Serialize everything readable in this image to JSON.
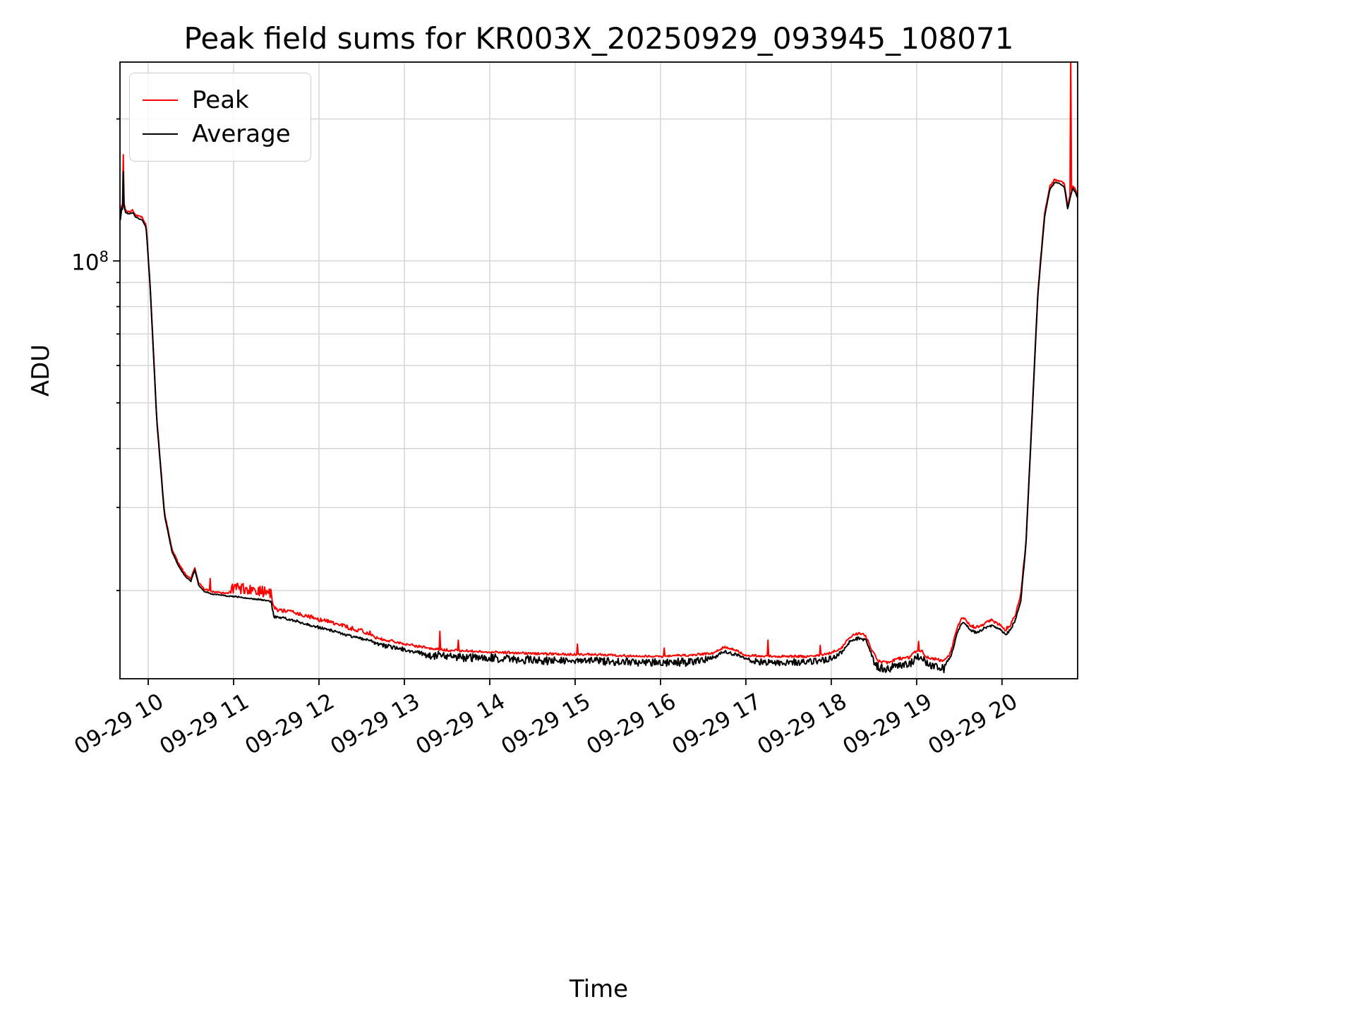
{
  "title": "Peak field sums for KR003X_20250929_093945_108071",
  "xlabel": "Time",
  "ylabel": "ADU",
  "legend": {
    "items": [
      {
        "label": "Peak",
        "color": "#ff0000"
      },
      {
        "label": "Average",
        "color": "#000000"
      }
    ]
  },
  "axes": {
    "x_tick_hours": [
      10,
      11,
      12,
      13,
      14,
      15,
      16,
      17,
      18,
      19,
      20
    ],
    "x_tick_labels": [
      "09-29 10",
      "09-29 11",
      "09-29 12",
      "09-29 13",
      "09-29 14",
      "09-29 15",
      "09-29 16",
      "09-29 17",
      "09-29 18",
      "09-29 19",
      "09-29 20"
    ],
    "xlim": [
      9.669,
      20.886
    ],
    "ylim": [
      13000000.0,
      264000000.0
    ],
    "y_scale": "log",
    "y_grid_values": [
      20000000.0,
      30000000.0,
      40000000.0,
      50000000.0,
      60000000.0,
      70000000.0,
      80000000.0,
      90000000.0,
      100000000.0,
      200000000.0
    ],
    "y_major_value": 100000000.0,
    "y_major_label": {
      "base": "10",
      "exp": "8"
    }
  },
  "style": {
    "grid_color": "#d4d4d4",
    "spine_color": "#000000",
    "background": "#ffffff",
    "peak_color": "#ff0000",
    "average_color": "#000000"
  },
  "chart_data": {
    "type": "line",
    "title": "Peak field sums for KR003X_20250929_093945_108071",
    "xlabel": "Time",
    "ylabel": "ADU",
    "y_scale": "log",
    "x_unit": "hour of day on 2025-09-29",
    "xlim": [
      9.669,
      20.886
    ],
    "ylim": [
      13000000.0,
      264000000.0
    ],
    "legend_position": "upper left",
    "grid": true,
    "sample_step_hours": 0.009,
    "noise_seed": 1337,
    "series": [
      {
        "name": "Peak",
        "color": "#ff0000",
        "definition": "average_base * (1 + red_offset + red_noise*rand), plus isolated spikes",
        "spikes": [
          [
            9.708,
            168000000.0
          ],
          [
            10.722,
            21200000.0
          ],
          [
            13.42,
            16400000.0
          ],
          [
            13.63,
            15700000.0
          ],
          [
            15.03,
            15400000.0
          ],
          [
            16.04,
            15100000.0
          ],
          [
            17.26,
            15700000.0
          ],
          [
            17.87,
            15300000.0
          ],
          [
            19.02,
            15600000.0
          ],
          [
            20.805,
            278000000.0
          ]
        ]
      },
      {
        "name": "Average",
        "color": "#000000",
        "anchors": [
          [
            9.672,
            122000000.0
          ],
          [
            9.69,
            130000000.0
          ],
          [
            9.7,
            129000000.0
          ],
          [
            9.708,
            155000000.0
          ],
          [
            9.716,
            131000000.0
          ],
          [
            9.735,
            127000000.0
          ],
          [
            9.775,
            126000000.0
          ],
          [
            9.82,
            127000000.0
          ],
          [
            9.845,
            124500000.0
          ],
          [
            9.88,
            123500000.0
          ],
          [
            9.93,
            122500000.0
          ],
          [
            9.975,
            118000000.0
          ],
          [
            10.02,
            90000000.0
          ],
          [
            10.1,
            46000000.0
          ],
          [
            10.19,
            29000000.0
          ],
          [
            10.28,
            24200000.0
          ],
          [
            10.36,
            22500000.0
          ],
          [
            10.44,
            21400000.0
          ],
          [
            10.5,
            21000000.0
          ],
          [
            10.545,
            22200000.0
          ],
          [
            10.59,
            20600000.0
          ],
          [
            10.65,
            20000000.0
          ],
          [
            10.75,
            19700000.0
          ],
          [
            10.9,
            19550000.0
          ],
          [
            11.05,
            19450000.0
          ],
          [
            11.2,
            19300000.0
          ],
          [
            11.35,
            19150000.0
          ],
          [
            11.44,
            19000000.0
          ],
          [
            11.475,
            17700000.0
          ],
          [
            11.6,
            17550000.0
          ],
          [
            11.75,
            17300000.0
          ],
          [
            11.95,
            16900000.0
          ],
          [
            12.15,
            16550000.0
          ],
          [
            12.35,
            16150000.0
          ],
          [
            12.55,
            15800000.0
          ],
          [
            12.75,
            15450000.0
          ],
          [
            12.95,
            15200000.0
          ],
          [
            13.2,
            14900000.0
          ],
          [
            13.5,
            14750000.0
          ],
          [
            13.9,
            14650000.0
          ],
          [
            14.3,
            14550000.0
          ],
          [
            14.8,
            14450000.0
          ],
          [
            15.2,
            14450000.0
          ],
          [
            15.6,
            14350000.0
          ],
          [
            16.0,
            14300000.0
          ],
          [
            16.4,
            14400000.0
          ],
          [
            16.62,
            14550000.0
          ],
          [
            16.75,
            15000000.0
          ],
          [
            16.88,
            14750000.0
          ],
          [
            17.0,
            14400000.0
          ],
          [
            17.3,
            14300000.0
          ],
          [
            17.7,
            14300000.0
          ],
          [
            17.95,
            14450000.0
          ],
          [
            18.12,
            14900000.0
          ],
          [
            18.22,
            15750000.0
          ],
          [
            18.32,
            16000000.0
          ],
          [
            18.4,
            15850000.0
          ],
          [
            18.47,
            14800000.0
          ],
          [
            18.55,
            14000000.0
          ],
          [
            18.65,
            13850000.0
          ],
          [
            18.78,
            14150000.0
          ],
          [
            18.92,
            14200000.0
          ],
          [
            19.0,
            14750000.0
          ],
          [
            19.07,
            14600000.0
          ],
          [
            19.13,
            14200000.0
          ],
          [
            19.22,
            14100000.0
          ],
          [
            19.32,
            13950000.0
          ],
          [
            19.4,
            14500000.0
          ],
          [
            19.47,
            16300000.0
          ],
          [
            19.53,
            17200000.0
          ],
          [
            19.58,
            17000000.0
          ],
          [
            19.63,
            16550000.0
          ],
          [
            19.7,
            16400000.0
          ],
          [
            19.78,
            16650000.0
          ],
          [
            19.84,
            17000000.0
          ],
          [
            19.9,
            16900000.0
          ],
          [
            19.97,
            16650000.0
          ],
          [
            20.04,
            16200000.0
          ],
          [
            20.1,
            16600000.0
          ],
          [
            20.16,
            17500000.0
          ],
          [
            20.22,
            19200000.0
          ],
          [
            20.28,
            25000000.0
          ],
          [
            20.34,
            42000000.0
          ],
          [
            20.42,
            85000000.0
          ],
          [
            20.5,
            125000000.0
          ],
          [
            20.56,
            142000000.0
          ],
          [
            20.62,
            147000000.0
          ],
          [
            20.68,
            146000000.0
          ],
          [
            20.73,
            144000000.0
          ],
          [
            20.77,
            129000000.0
          ],
          [
            20.805,
            138000000.0
          ],
          [
            20.83,
            143000000.0
          ],
          [
            20.86,
            140000000.0
          ],
          [
            20.886,
            136000000.0
          ]
        ]
      }
    ],
    "noise_segments": [
      {
        "t0": 9.672,
        "t1": 10.95,
        "red_offset": 0.005,
        "red_noise": 0.008,
        "black_noise": 0.005
      },
      {
        "t0": 10.95,
        "t1": 11.45,
        "red_offset": 0.012,
        "red_noise": 0.055,
        "black_noise": 0.006
      },
      {
        "t0": 11.45,
        "t1": 12.65,
        "red_offset": 0.022,
        "red_noise": 0.022,
        "black_noise": 0.012
      },
      {
        "t0": 12.65,
        "t1": 13.25,
        "red_offset": 0.012,
        "red_noise": 0.014,
        "black_noise": 0.02
      },
      {
        "t0": 13.25,
        "t1": 16.55,
        "red_offset": 0.008,
        "red_noise": 0.012,
        "black_noise": 0.035
      },
      {
        "t0": 16.55,
        "t1": 17.05,
        "red_offset": 0.008,
        "red_noise": 0.01,
        "black_noise": 0.016
      },
      {
        "t0": 17.05,
        "t1": 18.08,
        "red_offset": 0.008,
        "red_noise": 0.012,
        "black_noise": 0.03
      },
      {
        "t0": 18.08,
        "t1": 18.5,
        "red_offset": 0.008,
        "red_noise": 0.012,
        "black_noise": 0.016
      },
      {
        "t0": 18.5,
        "t1": 19.35,
        "red_offset": 0.007,
        "red_noise": 0.015,
        "black_noise": 0.035
      },
      {
        "t0": 19.35,
        "t1": 20.26,
        "red_offset": 0.01,
        "red_noise": 0.018,
        "black_noise": 0.012
      },
      {
        "t0": 20.26,
        "t1": 20.886,
        "red_offset": 0.007,
        "red_noise": 0.01,
        "black_noise": 0.004
      }
    ]
  }
}
